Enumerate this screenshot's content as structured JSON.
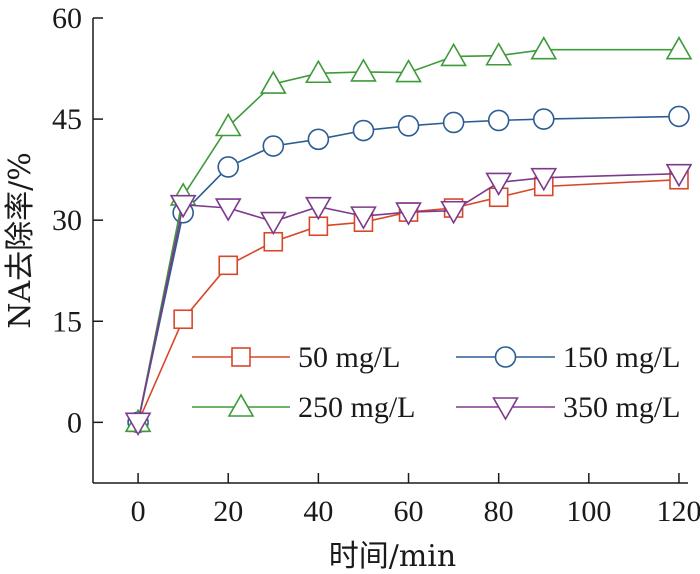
{
  "chart_data": {
    "type": "line",
    "xlabel": "时间/min",
    "ylabel": "NA去除率/%",
    "xlim": [
      -10,
      122
    ],
    "ylim": [
      -9,
      60
    ],
    "xticks": [
      0,
      20,
      40,
      60,
      80,
      100,
      120
    ],
    "yticks": [
      0,
      15,
      30,
      45,
      60
    ],
    "xtick_labels": [
      "0",
      "20",
      "40",
      "60",
      "80",
      "100",
      "120"
    ],
    "ytick_labels": [
      "0",
      "15",
      "30",
      "45",
      "60"
    ],
    "grid": false,
    "legend_position": "lower-right",
    "series": [
      {
        "name": "50 mg/L",
        "color": "#d9472b",
        "marker": "square",
        "x": [
          0,
          10,
          20,
          30,
          40,
          50,
          60,
          70,
          80,
          90,
          120
        ],
        "y": [
          0,
          15.3,
          23.3,
          26.8,
          29.1,
          29.7,
          31.2,
          31.8,
          33.4,
          35.0,
          36.0
        ]
      },
      {
        "name": "150 mg/L",
        "color": "#2b5d93",
        "marker": "circle",
        "x": [
          0,
          10,
          20,
          30,
          40,
          50,
          60,
          70,
          80,
          90,
          120
        ],
        "y": [
          0,
          31.1,
          37.9,
          41.0,
          42.0,
          43.3,
          44.0,
          44.5,
          44.8,
          45.0,
          45.4
        ]
      },
      {
        "name": "250 mg/L",
        "color": "#3f9a3a",
        "marker": "triangle-up",
        "x": [
          0,
          10,
          20,
          30,
          40,
          50,
          60,
          70,
          80,
          90,
          120
        ],
        "y": [
          0,
          33.6,
          43.9,
          50.2,
          51.8,
          52.0,
          51.9,
          54.3,
          54.4,
          55.3,
          55.3
        ]
      },
      {
        "name": "350 mg/L",
        "color": "#7d3a8c",
        "marker": "triangle-down",
        "x": [
          0,
          10,
          20,
          30,
          40,
          50,
          60,
          70,
          80,
          90,
          120
        ],
        "y": [
          0,
          32.3,
          31.8,
          29.8,
          32.0,
          30.6,
          31.2,
          31.4,
          35.6,
          36.3,
          36.9
        ]
      }
    ]
  }
}
